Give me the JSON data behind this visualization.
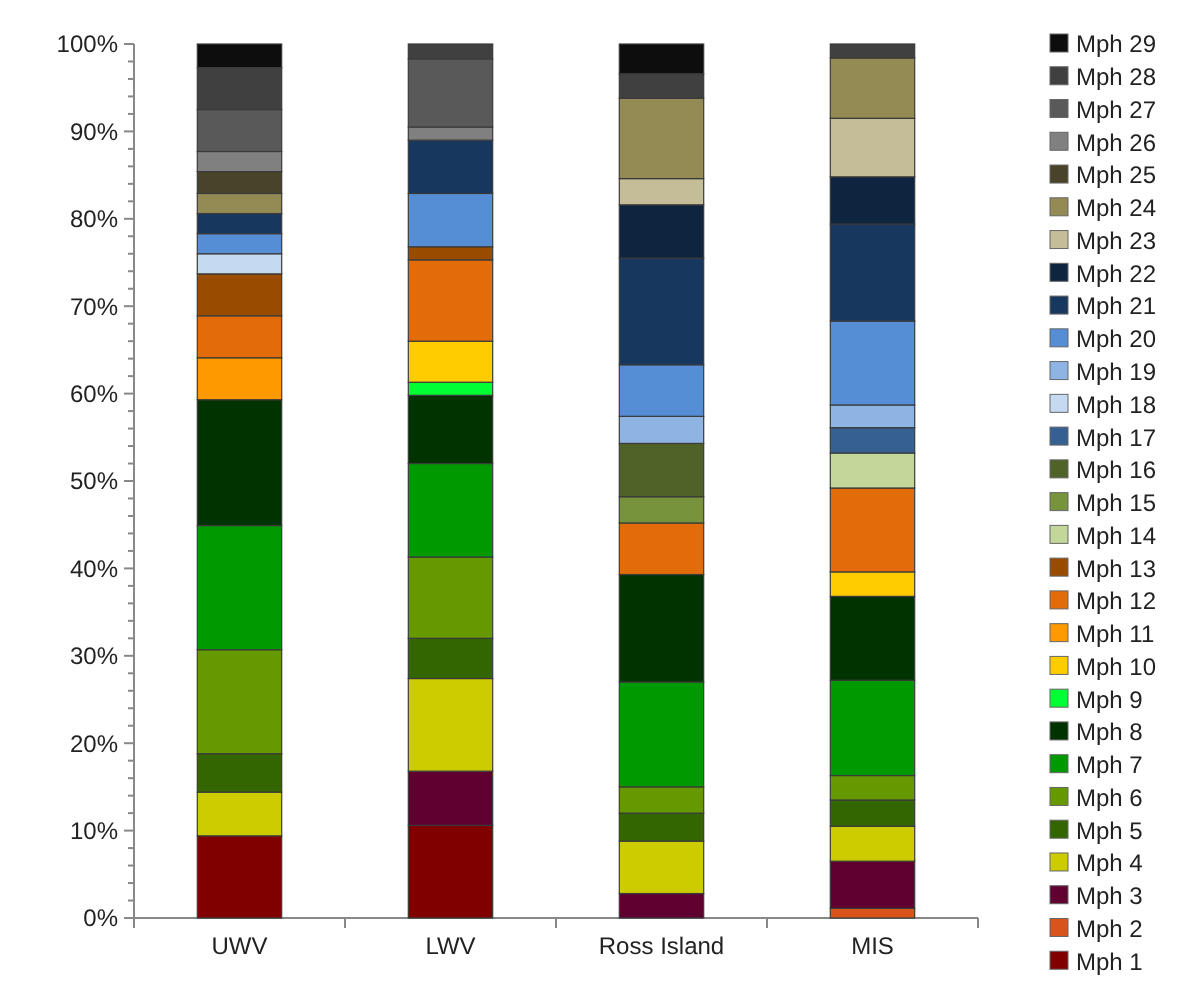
{
  "chart_data": {
    "type": "bar",
    "stacked": true,
    "categories": [
      "UWV",
      "LWV",
      "Ross Island",
      "MIS"
    ],
    "ylim": [
      0,
      100
    ],
    "yticks": [
      {
        "value": 0,
        "label": "0%"
      },
      {
        "value": 2,
        "label": null
      },
      {
        "value": 4,
        "label": null
      },
      {
        "value": 6,
        "label": null
      },
      {
        "value": 8,
        "label": null
      },
      {
        "value": 10,
        "label": "10%"
      },
      {
        "value": 12,
        "label": null
      },
      {
        "value": 14,
        "label": null
      },
      {
        "value": 16,
        "label": null
      },
      {
        "value": 18,
        "label": null
      },
      {
        "value": 20,
        "label": "20%"
      },
      {
        "value": 22,
        "label": null
      },
      {
        "value": 24,
        "label": null
      },
      {
        "value": 26,
        "label": null
      },
      {
        "value": 28,
        "label": null
      },
      {
        "value": 30,
        "label": "30%"
      },
      {
        "value": 32,
        "label": null
      },
      {
        "value": 34,
        "label": null
      },
      {
        "value": 36,
        "label": null
      },
      {
        "value": 38,
        "label": null
      },
      {
        "value": 40,
        "label": "40%"
      },
      {
        "value": 42,
        "label": null
      },
      {
        "value": 44,
        "label": null
      },
      {
        "value": 46,
        "label": null
      },
      {
        "value": 48,
        "label": null
      },
      {
        "value": 50,
        "label": "50%"
      },
      {
        "value": 52,
        "label": null
      },
      {
        "value": 54,
        "label": null
      },
      {
        "value": 56,
        "label": null
      },
      {
        "value": 58,
        "label": null
      },
      {
        "value": 60,
        "label": "60%"
      },
      {
        "value": 62,
        "label": null
      },
      {
        "value": 64,
        "label": null
      },
      {
        "value": 66,
        "label": null
      },
      {
        "value": 68,
        "label": null
      },
      {
        "value": 70,
        "label": "70%"
      },
      {
        "value": 72,
        "label": null
      },
      {
        "value": 74,
        "label": null
      },
      {
        "value": 76,
        "label": null
      },
      {
        "value": 78,
        "label": null
      },
      {
        "value": 80,
        "label": "80%"
      },
      {
        "value": 82,
        "label": null
      },
      {
        "value": 84,
        "label": null
      },
      {
        "value": 86,
        "label": null
      },
      {
        "value": 88,
        "label": null
      },
      {
        "value": 90,
        "label": "90%"
      },
      {
        "value": 92,
        "label": null
      },
      {
        "value": 94,
        "label": null
      },
      {
        "value": 96,
        "label": null
      },
      {
        "value": 98,
        "label": null
      },
      {
        "value": 100,
        "label": "100%"
      }
    ],
    "grid": false,
    "legend": "right",
    "series": [
      {
        "name": "Mph 1",
        "color": "#800000",
        "values": [
          9.4,
          10.6,
          null,
          null
        ]
      },
      {
        "name": "Mph 2",
        "color": "#d9541a",
        "values": [
          null,
          null,
          null,
          1.1
        ]
      },
      {
        "name": "Mph 3",
        "color": "#600030",
        "values": [
          null,
          6.2,
          2.8,
          5.4
        ]
      },
      {
        "name": "Mph 4",
        "color": "#cccc00",
        "values": [
          5.0,
          10.6,
          6.0,
          4.0
        ]
      },
      {
        "name": "Mph 5",
        "color": "#336600",
        "values": [
          4.4,
          4.6,
          3.2,
          3.0
        ]
      },
      {
        "name": "Mph 6",
        "color": "#669900",
        "values": [
          11.9,
          9.3,
          3.0,
          2.8
        ]
      },
      {
        "name": "Mph 7",
        "color": "#009900",
        "values": [
          14.2,
          10.7,
          12.0,
          10.9
        ]
      },
      {
        "name": "Mph 8",
        "color": "#003300",
        "values": [
          14.4,
          7.8,
          12.3,
          9.6
        ]
      },
      {
        "name": "Mph 9",
        "color": "#00ff33",
        "values": [
          null,
          1.5,
          null,
          null
        ]
      },
      {
        "name": "Mph 10",
        "color": "#ffcc00",
        "values": [
          null,
          4.7,
          null,
          2.8
        ]
      },
      {
        "name": "Mph 11",
        "color": "#ff9900",
        "values": [
          4.8,
          null,
          null,
          null
        ]
      },
      {
        "name": "Mph 12",
        "color": "#e36c0a",
        "values": [
          4.8,
          9.3,
          5.9,
          9.6
        ]
      },
      {
        "name": "Mph 13",
        "color": "#994c00",
        "values": [
          4.8,
          1.5,
          null,
          null
        ]
      },
      {
        "name": "Mph 14",
        "color": "#c4d79b",
        "values": [
          null,
          null,
          null,
          4.0
        ]
      },
      {
        "name": "Mph 15",
        "color": "#77933c",
        "values": [
          null,
          null,
          3.0,
          null
        ]
      },
      {
        "name": "Mph 16",
        "color": "#4f6228",
        "values": [
          null,
          null,
          6.1,
          null
        ]
      },
      {
        "name": "Mph 17",
        "color": "#366092",
        "values": [
          null,
          null,
          null,
          2.9
        ]
      },
      {
        "name": "Mph 18",
        "color": "#c5d9f1",
        "values": [
          2.3,
          null,
          null,
          null
        ]
      },
      {
        "name": "Mph 19",
        "color": "#8db4e2",
        "values": [
          null,
          null,
          3.1,
          2.6
        ]
      },
      {
        "name": "Mph 20",
        "color": "#558ed5",
        "values": [
          2.3,
          6.1,
          5.9,
          9.6
        ]
      },
      {
        "name": "Mph 21",
        "color": "#17375e",
        "values": [
          2.3,
          6.1,
          12.2,
          11.1
        ]
      },
      {
        "name": "Mph 22",
        "color": "#0f243e",
        "values": [
          null,
          null,
          6.1,
          5.4
        ]
      },
      {
        "name": "Mph 23",
        "color": "#c4bd97",
        "values": [
          null,
          null,
          3.0,
          6.7
        ]
      },
      {
        "name": "Mph 24",
        "color": "#948a54",
        "values": [
          2.3,
          null,
          9.2,
          6.9
        ]
      },
      {
        "name": "Mph 25",
        "color": "#494429",
        "values": [
          2.5,
          null,
          null,
          null
        ]
      },
      {
        "name": "Mph 26",
        "color": "#808080",
        "values": [
          2.3,
          1.5,
          null,
          null
        ]
      },
      {
        "name": "Mph 27",
        "color": "#595959",
        "values": [
          4.8,
          7.8,
          null,
          null
        ]
      },
      {
        "name": "Mph 28",
        "color": "#404040",
        "values": [
          4.8,
          1.7,
          2.8,
          1.6
        ]
      },
      {
        "name": "Mph 29",
        "color": "#0d0d0d",
        "values": [
          2.7,
          null,
          3.4,
          null
        ]
      }
    ]
  }
}
